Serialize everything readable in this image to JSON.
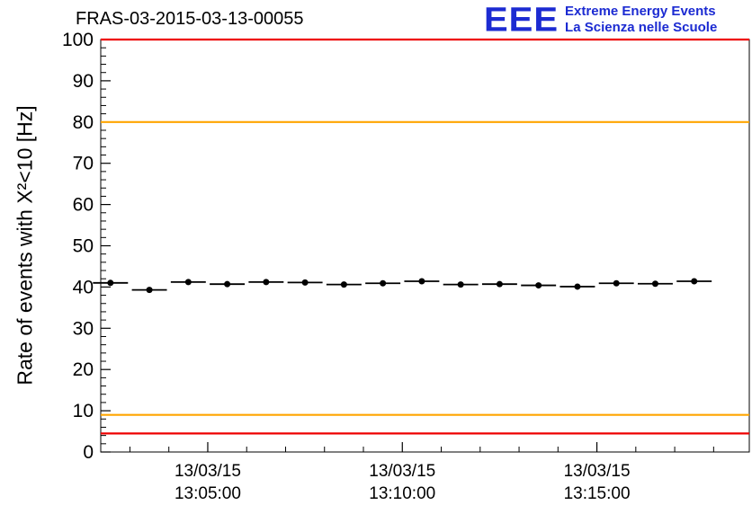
{
  "title": "FRAS-03-2015-03-13-00055",
  "logo": {
    "acronym": "EEE",
    "line1": "Extreme Energy Events",
    "line2": "La Scienza nelle Scuole",
    "color": "#1c2bd2"
  },
  "chart_data": {
    "type": "scatter",
    "title": "FRAS-03-2015-03-13-00055",
    "ylabel": "Rate of events with X²<10 [Hz]",
    "ylim": [
      0,
      100
    ],
    "y_major_ticks": [
      0,
      10,
      20,
      30,
      40,
      50,
      60,
      70,
      80,
      90,
      100
    ],
    "y_minor_step": 2,
    "x_unit": "seconds since 13/03/15 13:05:00",
    "xlim": [
      -165,
      835
    ],
    "x_minor_step": 60,
    "x_ticks": [
      {
        "t": 0,
        "date": "13/03/15",
        "time": "13:05:00"
      },
      {
        "t": 300,
        "date": "13/03/15",
        "time": "13:10:00"
      },
      {
        "t": 600,
        "date": "13/03/15",
        "time": "13:15:00"
      }
    ],
    "grid": false,
    "legend": false,
    "threshold_lines": [
      {
        "name": "red-high",
        "y": 100,
        "color": "#ee0000"
      },
      {
        "name": "orange-high",
        "y": 80,
        "color": "#ffa500"
      },
      {
        "name": "orange-low",
        "y": 9,
        "color": "#ffa500"
      },
      {
        "name": "red-low",
        "y": 4.5,
        "color": "#ee0000"
      }
    ],
    "series": [
      {
        "name": "rate",
        "color": "#000000",
        "marker": "circle",
        "x_bin_halfwidth_seconds": 27,
        "points": [
          {
            "t": -150,
            "y": 41.0
          },
          {
            "t": -90,
            "y": 39.3
          },
          {
            "t": -30,
            "y": 41.2
          },
          {
            "t": 30,
            "y": 40.7
          },
          {
            "t": 90,
            "y": 41.2
          },
          {
            "t": 150,
            "y": 41.1
          },
          {
            "t": 210,
            "y": 40.6
          },
          {
            "t": 270,
            "y": 40.9
          },
          {
            "t": 330,
            "y": 41.4
          },
          {
            "t": 390,
            "y": 40.6
          },
          {
            "t": 450,
            "y": 40.7
          },
          {
            "t": 510,
            "y": 40.4
          },
          {
            "t": 570,
            "y": 40.1
          },
          {
            "t": 630,
            "y": 40.9
          },
          {
            "t": 690,
            "y": 40.8
          },
          {
            "t": 750,
            "y": 41.4
          }
        ]
      }
    ]
  }
}
